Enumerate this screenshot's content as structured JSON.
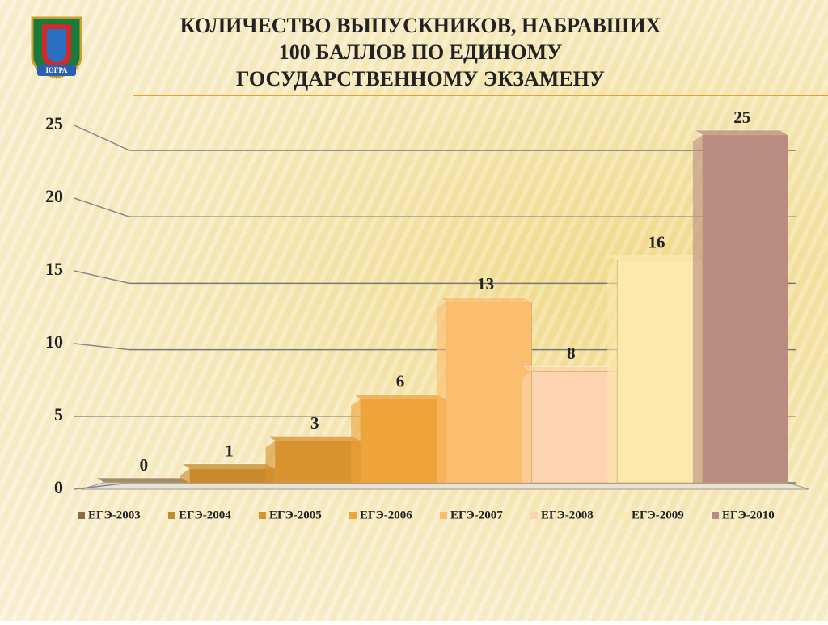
{
  "logo_text": "ЮГРА",
  "chart_data": {
    "type": "bar3d",
    "title": "КОЛИЧЕСТВО ВЫПУСКНИКОВ, НАБРАВШИХ 100 БАЛЛОВ ПО ЕДИНОМУ ГОСУДАРСТВЕННОМУ ЭКЗАМЕНУ",
    "series": [
      {
        "name": "ЕГЭ-2003",
        "color": "#8b6d45",
        "values": [
          0
        ]
      },
      {
        "name": "ЕГЭ-2004",
        "color": "#c98a2e",
        "values": [
          1
        ]
      },
      {
        "name": "ЕГЭ-2005",
        "color": "#d8922f",
        "values": [
          3
        ]
      },
      {
        "name": "ЕГЭ-2006",
        "color": "#efa43a",
        "values": [
          6
        ]
      },
      {
        "name": "ЕГЭ-2007",
        "color": "#fbbd6e",
        "values": [
          13
        ]
      },
      {
        "name": "ЕГЭ-2008",
        "color": "#fdd3b0",
        "values": [
          8
        ]
      },
      {
        "name": "ЕГЭ-2009",
        "color": "#fde8ae",
        "values": [
          16
        ]
      },
      {
        "name": "ЕГЭ-2010",
        "color": "#b98c82",
        "values": [
          25
        ]
      }
    ],
    "ylim": [
      0,
      25
    ],
    "yticks": [
      0,
      5,
      10,
      15,
      20,
      25
    ],
    "grid": true,
    "legend": "bottom"
  }
}
